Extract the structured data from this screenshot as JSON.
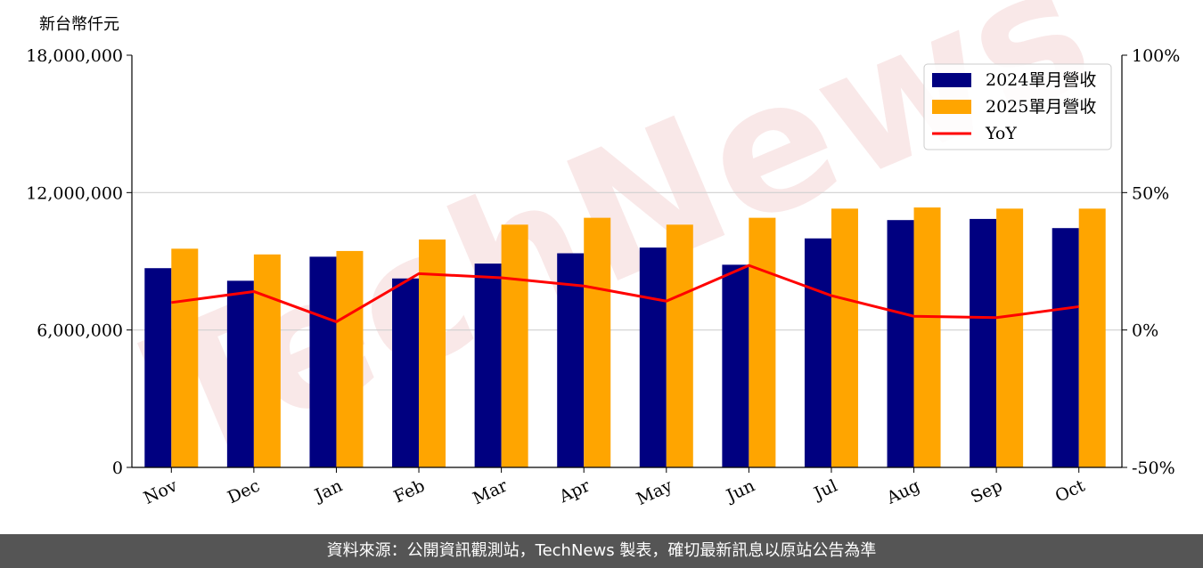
{
  "chart_data": {
    "type": "bar",
    "ylabel": "新台幣仟元",
    "categories": [
      "Nov",
      "Dec",
      "Jan",
      "Feb",
      "Mar",
      "Apr",
      "May",
      "Jun",
      "Jul",
      "Aug",
      "Sep",
      "Oct"
    ],
    "series": [
      {
        "name": "2024單月營收",
        "type": "bar",
        "color": "#000080",
        "axis": "left",
        "values": [
          8700000,
          8150000,
          9200000,
          8250000,
          8900000,
          9350000,
          9600000,
          8850000,
          10000000,
          10800000,
          10850000,
          10450000
        ]
      },
      {
        "name": "2025單月營收",
        "type": "bar",
        "color": "#ffa500",
        "axis": "left",
        "values": [
          9550000,
          9300000,
          9450000,
          9950000,
          10600000,
          10900000,
          10600000,
          10900000,
          11300000,
          11350000,
          11300000,
          11300000
        ]
      },
      {
        "name": "YoY",
        "type": "line",
        "color": "#ff0000",
        "axis": "right",
        "values": [
          10,
          14,
          3,
          20.5,
          19,
          16,
          10.5,
          23.5,
          12.5,
          5,
          4.5,
          8.5
        ]
      }
    ],
    "ylim": [
      0,
      18000000
    ],
    "yticks": [
      "0",
      "6,000,000",
      "12,000,000",
      "18,000,000"
    ],
    "y2lim": [
      -50,
      100
    ],
    "y2ticks": [
      "-50%",
      "0%",
      "50%",
      "100%"
    ],
    "grid": "horizontal",
    "legend": "top-right"
  },
  "watermark": "TechNews",
  "footer": {
    "text": "資料來源：公開資訊觀測站，TechNews 製表，確切最新訊息以原站公告為準"
  }
}
